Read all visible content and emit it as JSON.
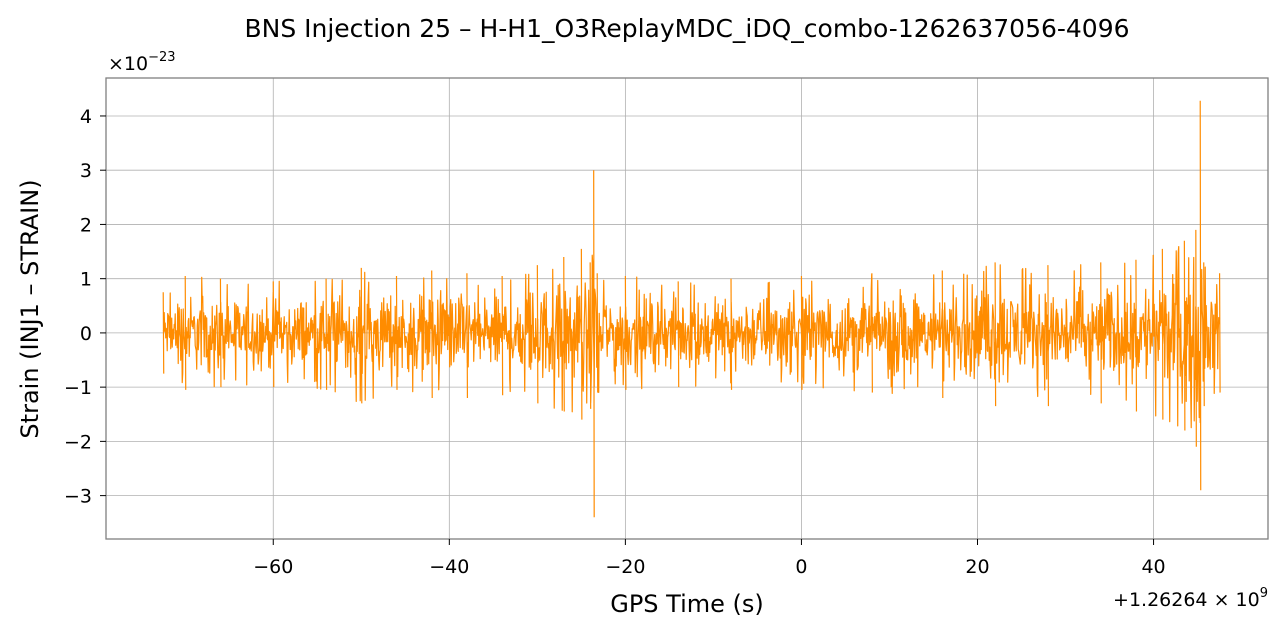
{
  "chart_data": {
    "type": "line",
    "title": "BNS Injection 25 – H-H1_O3ReplayMDC_iDQ_combo-1262637056-4096",
    "xlabel": "GPS Time (s)",
    "ylabel": "Strain (INJ1 – STRAIN)",
    "x_offset_base": "+1.26264",
    "x_offset_exp": "9",
    "y_scale_base": "×10",
    "y_scale_exp": "−23",
    "xlim": [
      -79,
      53
    ],
    "ylim": [
      -3.8,
      4.7
    ],
    "x_ticks": [
      -60,
      -40,
      -20,
      0,
      20,
      40
    ],
    "x_tick_labels": [
      "−60",
      "−40",
      "−20",
      "0",
      "20",
      "40"
    ],
    "y_ticks": [
      -3,
      -2,
      -1,
      0,
      1,
      2,
      3,
      4
    ],
    "y_tick_labels": [
      "−3",
      "−2",
      "−1",
      "0",
      "1",
      "2",
      "3",
      "4"
    ],
    "grid": true,
    "series": [
      {
        "color": "#ff8c00",
        "x_range": [
          -72.5,
          47.5
        ],
        "envelope": [
          [
            -72.5,
            0.75,
            -0.75
          ],
          [
            -70.0,
            1.05,
            -1.05
          ],
          [
            -66.0,
            1.0,
            -1.0
          ],
          [
            -60.0,
            0.95,
            -1.0
          ],
          [
            -54.0,
            1.0,
            -1.05
          ],
          [
            -50.0,
            1.2,
            -1.3
          ],
          [
            -46.0,
            1.05,
            -1.05
          ],
          [
            -42.0,
            1.15,
            -1.2
          ],
          [
            -38.0,
            1.1,
            -1.2
          ],
          [
            -34.0,
            1.05,
            -1.15
          ],
          [
            -30.0,
            1.25,
            -1.3
          ],
          [
            -27.0,
            1.4,
            -1.45
          ],
          [
            -25.0,
            1.55,
            -1.6
          ],
          [
            -24.0,
            1.3,
            -1.4
          ],
          [
            -23.6,
            3.0,
            -3.4
          ],
          [
            -23.2,
            1.1,
            -1.1
          ],
          [
            -20.0,
            1.05,
            -1.05
          ],
          [
            -14.0,
            0.95,
            -1.0
          ],
          [
            -8.0,
            1.0,
            -1.05
          ],
          [
            0.0,
            1.05,
            -1.05
          ],
          [
            8.0,
            1.1,
            -1.1
          ],
          [
            16.0,
            1.15,
            -1.2
          ],
          [
            22.0,
            1.3,
            -1.35
          ],
          [
            28.0,
            1.25,
            -1.35
          ],
          [
            34.0,
            1.3,
            -1.3
          ],
          [
            38.0,
            1.35,
            -1.45
          ],
          [
            41.0,
            1.55,
            -1.6
          ],
          [
            43.5,
            1.7,
            -1.8
          ],
          [
            44.8,
            1.9,
            -2.1
          ],
          [
            45.3,
            4.28,
            -2.9
          ],
          [
            45.7,
            1.3,
            -1.35
          ],
          [
            47.5,
            1.1,
            -1.1
          ]
        ]
      }
    ]
  }
}
